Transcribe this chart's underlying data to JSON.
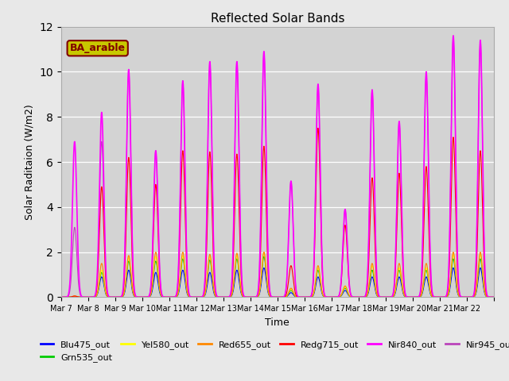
{
  "title": "Reflected Solar Bands",
  "xlabel": "Time",
  "ylabel": "Solar Raditaion (W/m2)",
  "ylim": [
    0,
    12
  ],
  "fig_facecolor": "#e8e8e8",
  "ax_facecolor": "#d3d3d3",
  "annotation_text": "BA_arable",
  "annotation_bg": "#c8c800",
  "annotation_fg": "#800000",
  "series": {
    "Blu475_out": {
      "color": "#0000ff",
      "lw": 0.8
    },
    "Grn535_out": {
      "color": "#00cc00",
      "lw": 0.8
    },
    "Yel580_out": {
      "color": "#ffff00",
      "lw": 0.8
    },
    "Red655_out": {
      "color": "#ff8800",
      "lw": 0.8
    },
    "Redg715_out": {
      "color": "#ff0000",
      "lw": 0.8
    },
    "Nir840_out": {
      "color": "#ff00ff",
      "lw": 1.2
    },
    "Nir945_out": {
      "color": "#bb44bb",
      "lw": 0.8
    }
  },
  "xtick_labels": [
    "Mar 7",
    "Mar 8",
    "Mar 9",
    "Mar 10",
    "Mar 11",
    "Mar 12",
    "Mar 13",
    "Mar 14",
    "Mar 15",
    "Mar 16",
    "Mar 17",
    "Mar 18",
    "Mar 19",
    "Mar 20",
    "Mar 21",
    "Mar 22",
    ""
  ],
  "n_days": 16,
  "sigma": 0.08,
  "peaks": {
    "Nir840_out": [
      6.9,
      8.2,
      10.1,
      6.5,
      9.6,
      10.45,
      10.45,
      10.9,
      5.15,
      9.45,
      3.9,
      9.2,
      7.8,
      10.0,
      11.6,
      11.4
    ],
    "Nir945_out": [
      3.1,
      6.9,
      10.1,
      6.5,
      9.6,
      10.45,
      10.45,
      10.9,
      5.15,
      9.45,
      3.9,
      9.2,
      7.8,
      9.9,
      11.6,
      11.4
    ],
    "Redg715_out": [
      0.05,
      4.9,
      6.2,
      5.0,
      6.5,
      6.45,
      6.35,
      6.7,
      1.4,
      7.5,
      3.2,
      5.3,
      5.5,
      5.8,
      7.1,
      6.5
    ],
    "Red655_out": [
      0.05,
      1.5,
      1.85,
      2.0,
      2.0,
      1.9,
      1.95,
      2.0,
      0.4,
      1.4,
      0.5,
      1.5,
      1.5,
      1.5,
      2.0,
      2.0
    ],
    "Yel580_out": [
      0.05,
      1.2,
      1.75,
      1.8,
      1.85,
      1.8,
      1.85,
      2.0,
      0.35,
      1.3,
      0.45,
      1.4,
      1.3,
      1.3,
      1.9,
      1.9
    ],
    "Grn535_out": [
      0.03,
      1.1,
      1.6,
      1.6,
      1.7,
      1.65,
      1.7,
      1.8,
      0.3,
      1.2,
      0.4,
      1.2,
      1.2,
      1.2,
      1.7,
      1.7
    ],
    "Blu475_out": [
      0.03,
      0.9,
      1.2,
      1.1,
      1.2,
      1.1,
      1.2,
      1.3,
      0.2,
      0.9,
      0.3,
      0.9,
      0.9,
      0.9,
      1.3,
      1.3
    ]
  }
}
